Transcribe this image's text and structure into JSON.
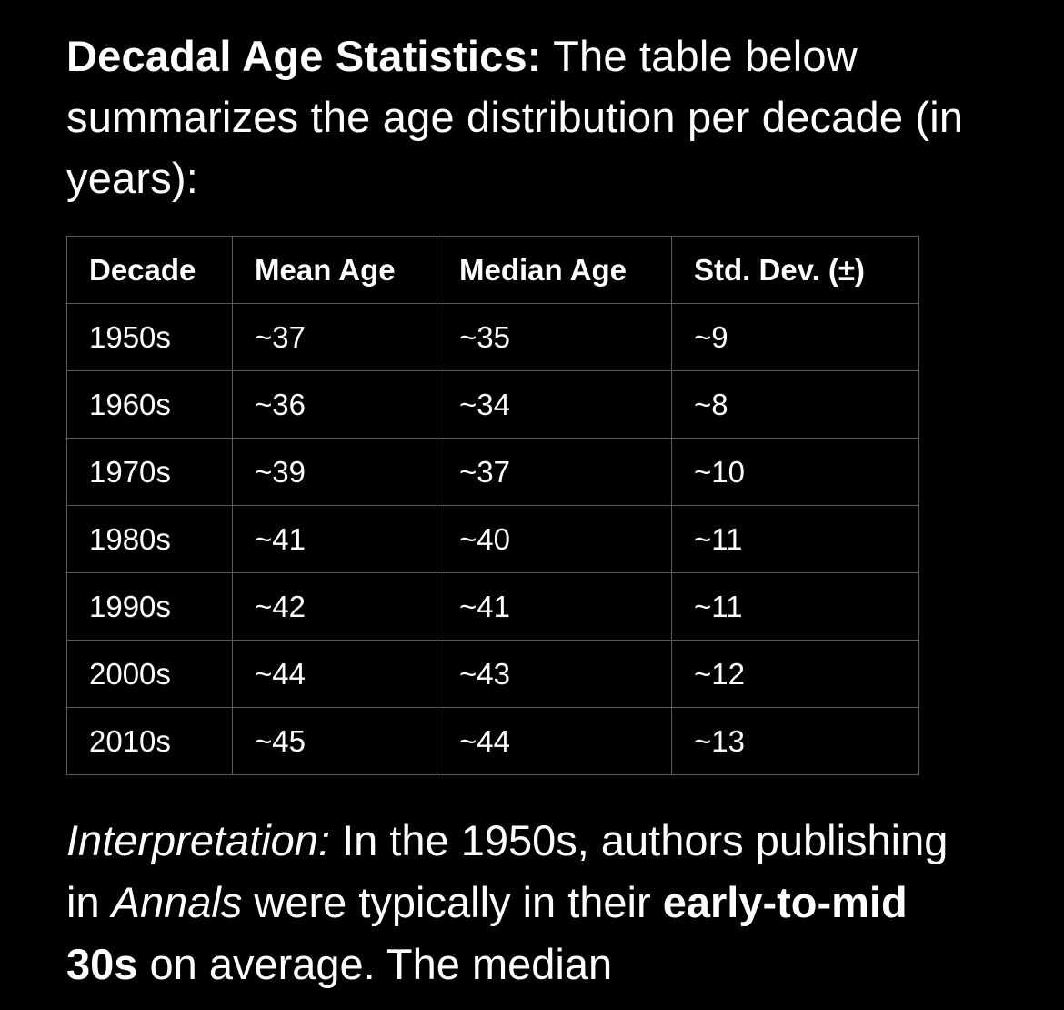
{
  "heading": {
    "lead": "Decadal Age Statistics:",
    "text": " The table below summarizes the age distribution per decade (in years):"
  },
  "table": {
    "headers": [
      "Decade",
      "Mean Age",
      "Median Age",
      "Std. Dev. (±)"
    ],
    "rows": [
      [
        "1950s",
        "~37",
        "~35",
        "~9"
      ],
      [
        "1960s",
        "~36",
        "~34",
        "~8"
      ],
      [
        "1970s",
        "~39",
        "~37",
        "~10"
      ],
      [
        "1980s",
        "~41",
        "~40",
        "~11"
      ],
      [
        "1990s",
        "~42",
        "~41",
        "~11"
      ],
      [
        "2000s",
        "~44",
        "~43",
        "~12"
      ],
      [
        "2010s",
        "~45",
        "~44",
        "~13"
      ]
    ]
  },
  "interpretation": {
    "label": "Interpretation:",
    "part1": " In the 1950s, authors publishing in ",
    "journal": "Annals",
    "part2": " were typically in their ",
    "emphasis": "early-to-mid 30s",
    "part3": " on average. The median"
  },
  "colors": {
    "background": "#000000",
    "text": "#ffffff",
    "table_border": "#5a5a5a"
  }
}
